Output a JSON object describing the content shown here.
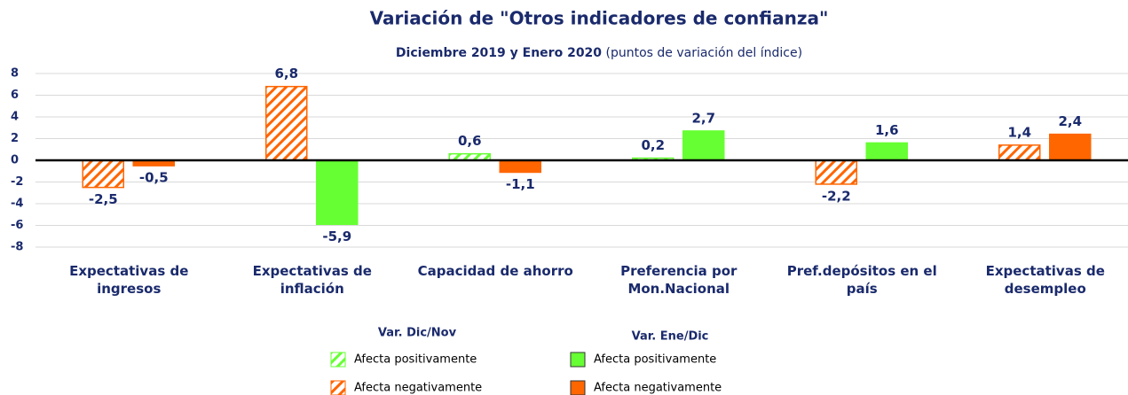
{
  "chart_data": {
    "type": "bar",
    "title": "Variación de \"Otros indicadores de confianza\"",
    "subtitle": "Diciembre 2019 y Enero 2020",
    "subtitle_note": "(puntos de variación del índice)",
    "categories": [
      "Expectativas de ingresos",
      "Expectativas de inflación",
      "Capacidad de ahorro",
      "Preferencia por Mon.Nacional",
      "Pref.depósitos en el país",
      "Expectativas de desempleo"
    ],
    "series": [
      {
        "name": "Var. Dic/Nov",
        "pattern": "hatch",
        "values": [
          -2.5,
          6.8,
          0.6,
          0.2,
          -2.2,
          1.4
        ],
        "value_labels": [
          "-2,5",
          "6,8",
          "0,6",
          "0,2",
          "-2,2",
          "1,4"
        ],
        "colors": [
          "#ff6600",
          "#ff6600",
          "#66ff33",
          "#66ff33",
          "#ff6600",
          "#ff6600"
        ]
      },
      {
        "name": "Var. Ene/Dic",
        "pattern": "solid",
        "values": [
          -0.5,
          -5.9,
          -1.1,
          2.7,
          1.6,
          2.4
        ],
        "value_labels": [
          "-0,5",
          "-5,9",
          "-1,1",
          "2,7",
          "1,6",
          "2,4"
        ],
        "colors": [
          "#ff6600",
          "#66ff33",
          "#ff6600",
          "#66ff33",
          "#66ff33",
          "#ff6600"
        ]
      }
    ],
    "legend": [
      {
        "title": "Var. Dic/Nov",
        "pattern": "hatch",
        "entries": [
          {
            "label": "Afecta positivamente",
            "color": "#66ff33"
          },
          {
            "label": "Afecta negativamente",
            "color": "#ff6600"
          }
        ]
      },
      {
        "title": "Var. Ene/Dic",
        "pattern": "solid",
        "entries": [
          {
            "label": "Afecta positivamente",
            "color": "#66ff33"
          },
          {
            "label": "Afecta negativamente",
            "color": "#ff6600"
          }
        ]
      }
    ],
    "ylim": [
      -8,
      8
    ],
    "yticks": [
      8,
      6,
      4,
      2,
      0,
      -2,
      -4,
      -6,
      -8
    ],
    "grid": true
  }
}
